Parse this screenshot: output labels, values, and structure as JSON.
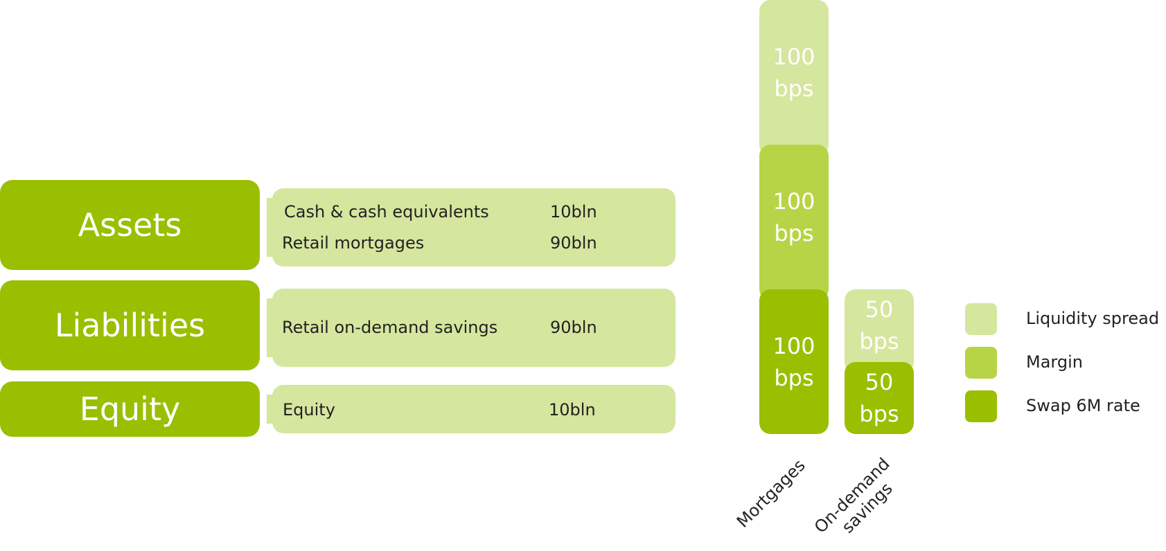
{
  "balance_sheet": {
    "assets": {
      "title": "Assets",
      "rows": [
        {
          "label": "Cash & cash equivalents",
          "value": "10bln"
        },
        {
          "label": "Retail mortgages",
          "value": "90bln"
        }
      ]
    },
    "liabilities": {
      "title": "Liabilities",
      "rows": [
        {
          "label": "Retail on-demand savings",
          "value": "90bln"
        }
      ]
    },
    "equity": {
      "title": "Equity",
      "rows": [
        {
          "label": "Equity",
          "value": "10bln"
        }
      ]
    }
  },
  "chart_data": {
    "type": "bar",
    "stacked": true,
    "categories": [
      "Mortgages",
      "On-demand savings"
    ],
    "unit": "bps",
    "series": [
      {
        "name": "Swap 6M rate",
        "values": [
          100,
          50
        ],
        "labels": [
          [
            "100",
            "bps"
          ],
          [
            "50",
            "bps"
          ]
        ],
        "color": "#99bf00"
      },
      {
        "name": "Margin",
        "values": [
          100,
          0
        ],
        "labels": [
          [
            "100",
            "bps"
          ],
          null
        ],
        "color": "#b7d446"
      },
      {
        "name": "Liquidity spread",
        "values": [
          100,
          50
        ],
        "labels": [
          [
            "100",
            "bps"
          ],
          [
            "50",
            "bps"
          ]
        ],
        "color": "#d5e69e"
      }
    ],
    "legend": [
      {
        "name": "Liquidity spread",
        "color": "#d5e69e"
      },
      {
        "name": "Margin",
        "color": "#b7d446"
      },
      {
        "name": "Swap 6M rate",
        "color": "#99bf00"
      }
    ],
    "legend_position": "right"
  },
  "axis_labels": {
    "mortgages": "Mortgages",
    "savings_line1": "On-demand",
    "savings_line2": "savings"
  }
}
